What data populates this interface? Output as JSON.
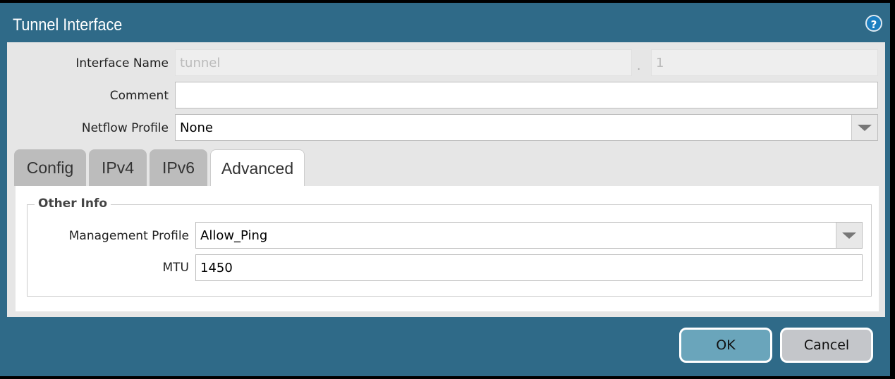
{
  "dialog": {
    "title": "Tunnel Interface",
    "help_icon": "help-icon"
  },
  "form": {
    "interface_name_label": "Interface Name",
    "interface_name_value": "tunnel",
    "separator": ".",
    "interface_suffix_value": "1",
    "comment_label": "Comment",
    "comment_value": "",
    "netflow_label": "Netflow Profile",
    "netflow_value": "None"
  },
  "tabs": [
    {
      "label": "Config"
    },
    {
      "label": "IPv4"
    },
    {
      "label": "IPv6"
    },
    {
      "label": "Advanced",
      "active": true
    }
  ],
  "advanced": {
    "group_title": "Other Info",
    "mgmt_label": "Management Profile",
    "mgmt_value": "Allow_Ping",
    "mtu_label": "MTU",
    "mtu_value": "1450"
  },
  "footer": {
    "ok": "OK",
    "cancel": "Cancel"
  },
  "colors": {
    "frame": "#2f6a88",
    "ok": "#6aa5bb",
    "cancel": "#c4c6ca"
  }
}
